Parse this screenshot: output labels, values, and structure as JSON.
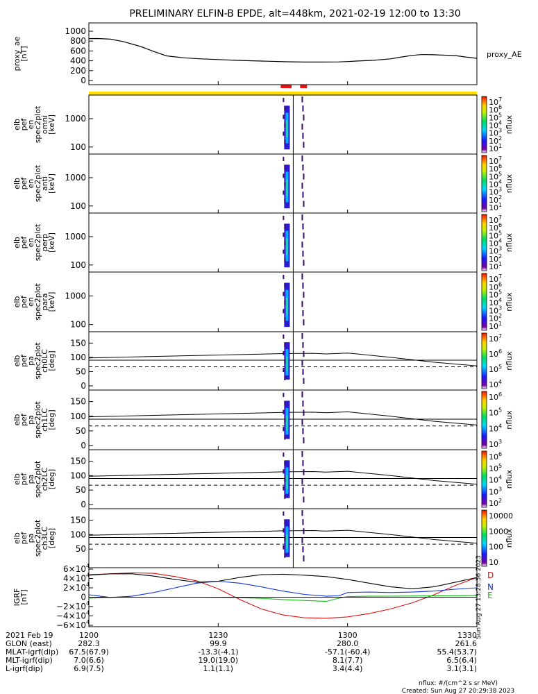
{
  "title": "PRELIMINARY ELFIN-B EPDE, alt=448km, 2021-02-19 12:00 to 13:30",
  "colors": {
    "yellow_bar": "#ffdd00",
    "red_marker": "#ee1111",
    "ae_line": "#000000",
    "d_line": "#dd1111",
    "n_line": "#1133dd",
    "e_line": "#11bb11"
  },
  "chart_data": [
    {
      "type": "line",
      "id": "proxy_ae",
      "ylabel_lines": [
        "proxy_ae",
        "[nT]"
      ],
      "yticks": [
        "1000",
        "800",
        "600",
        "400",
        "200",
        "0"
      ],
      "ylim": [
        -100,
        1100
      ],
      "series": [
        {
          "name": "proxy_AE",
          "x": [
            0,
            2,
            5,
            8,
            12,
            15,
            18,
            22,
            26,
            30,
            34,
            38,
            42,
            46,
            50,
            54,
            58,
            60,
            62,
            66,
            70,
            72,
            75,
            77,
            78,
            80,
            82,
            85,
            88,
            90
          ],
          "y": [
            850,
            852,
            840,
            790,
            690,
            590,
            500,
            460,
            440,
            425,
            410,
            400,
            390,
            380,
            375,
            375,
            378,
            385,
            395,
            410,
            440,
            470,
            510,
            525,
            525,
            522,
            515,
            505,
            470,
            450
          ]
        }
      ]
    },
    {
      "type": "heatmap",
      "id": "omni",
      "ylabel_lines": [
        "elb",
        "pef",
        "en",
        "spec2plot",
        "omni",
        "[keV]"
      ],
      "yticks": [
        "1000",
        "100"
      ],
      "yscale": "log",
      "cb_labels": [
        "10",
        "10",
        "10",
        "10",
        "10",
        "10",
        "10"
      ],
      "cb_exps": [
        "7",
        "6",
        "5",
        "4",
        "3",
        "2",
        "1"
      ],
      "cb_title": "nflux"
    },
    {
      "type": "heatmap",
      "id": "anti",
      "ylabel_lines": [
        "elb",
        "pef",
        "en",
        "spec2plot",
        "anti",
        "[keV]"
      ],
      "yticks": [
        "1000",
        "100"
      ],
      "yscale": "log",
      "cb_labels": [
        "10",
        "10",
        "10",
        "10",
        "10",
        "10",
        "10"
      ],
      "cb_exps": [
        "7",
        "6",
        "5",
        "4",
        "3",
        "2",
        "1"
      ],
      "cb_title": "nflux"
    },
    {
      "type": "heatmap",
      "id": "perp",
      "ylabel_lines": [
        "elb",
        "pef",
        "en",
        "spec2plot",
        "perp",
        "[keV]"
      ],
      "yticks": [
        "1000",
        "100"
      ],
      "yscale": "log",
      "cb_labels": [
        "10",
        "10",
        "10",
        "10",
        "10",
        "10",
        "10"
      ],
      "cb_exps": [
        "7",
        "6",
        "5",
        "4",
        "3",
        "2",
        "1"
      ],
      "cb_title": "nflux"
    },
    {
      "type": "heatmap",
      "id": "para",
      "ylabel_lines": [
        "elb",
        "pef",
        "en",
        "spec2plot",
        "para",
        "[keV]"
      ],
      "yticks": [
        "1000",
        "100"
      ],
      "yscale": "log",
      "cb_labels": [
        "10",
        "10",
        "10",
        "10",
        "10",
        "10",
        "10"
      ],
      "cb_exps": [
        "7",
        "6",
        "5",
        "4",
        "3",
        "2",
        "1"
      ],
      "cb_title": "nflux"
    },
    {
      "type": "heatmap",
      "id": "ch0LC",
      "ylabel_lines": [
        "elb",
        "pef",
        "pa",
        "spec2plot",
        "ch0LC",
        "[deg]"
      ],
      "yticks": [
        "150",
        "100",
        "50",
        "0"
      ],
      "ylim": [
        0,
        180
      ],
      "cb_labels": [
        "10",
        "10",
        "10",
        "10"
      ],
      "cb_exps": [
        "7",
        "6",
        "5",
        "4"
      ],
      "cb_title": "nflux",
      "solid_line": {
        "x": [
          0,
          30,
          45,
          52,
          55,
          60,
          70,
          80,
          90
        ],
        "y": [
          98,
          108,
          113,
          114,
          112,
          115,
          100,
          83,
          70
        ]
      },
      "dashed_line": {
        "x": [
          0,
          30,
          45,
          52,
          55,
          60,
          70,
          80,
          90
        ],
        "y": [
          67,
          67,
          67,
          67,
          67,
          67,
          67,
          67,
          67
        ]
      },
      "hline": 90
    },
    {
      "type": "heatmap",
      "id": "ch1LC",
      "ylabel_lines": [
        "elb",
        "pef",
        "pa",
        "spec2plot",
        "ch1LC",
        "[deg]"
      ],
      "yticks": [
        "150",
        "100",
        "50",
        "0"
      ],
      "ylim": [
        0,
        180
      ],
      "cb_labels": [
        "10",
        "10",
        "10",
        "10"
      ],
      "cb_exps": [
        "6",
        "5",
        "4",
        "3"
      ],
      "cb_title": "nflux",
      "solid_line": {
        "x": [
          0,
          30,
          45,
          52,
          55,
          60,
          70,
          80,
          90
        ],
        "y": [
          98,
          108,
          113,
          114,
          112,
          115,
          100,
          83,
          70
        ]
      },
      "dashed_line": {
        "x": [
          0,
          30,
          45,
          52,
          55,
          60,
          70,
          80,
          90
        ],
        "y": [
          67,
          67,
          67,
          67,
          67,
          67,
          67,
          67,
          67
        ]
      },
      "hline": 90
    },
    {
      "type": "heatmap",
      "id": "ch2LC",
      "ylabel_lines": [
        "elb",
        "pef",
        "pa",
        "spec2plot",
        "ch2LC",
        "[deg]"
      ],
      "yticks": [
        "150",
        "100",
        "50",
        "0"
      ],
      "ylim": [
        0,
        180
      ],
      "cb_labels": [
        "10",
        "10",
        "10",
        "10",
        "10"
      ],
      "cb_exps": [
        "6",
        "5",
        "4",
        "3",
        "2"
      ],
      "cb_title": "nflux",
      "solid_line": {
        "x": [
          0,
          30,
          45,
          52,
          55,
          60,
          70,
          80,
          90
        ],
        "y": [
          98,
          108,
          113,
          114,
          112,
          115,
          100,
          83,
          70
        ]
      },
      "dashed_line": {
        "x": [
          0,
          30,
          45,
          52,
          55,
          60,
          70,
          80,
          90
        ],
        "y": [
          67,
          67,
          67,
          67,
          67,
          67,
          67,
          67,
          67
        ]
      },
      "hline": 90
    },
    {
      "type": "heatmap",
      "id": "ch3LC",
      "ylabel_lines": [
        "elb",
        "pef",
        "pa",
        "spec2plot",
        "ch3LC",
        "[deg]"
      ],
      "yticks": [
        "150",
        "100",
        "50"
      ],
      "ylim": [
        0,
        180
      ],
      "cb_labels": [
        "10000",
        "1000",
        "100",
        "10"
      ],
      "cb_exps": [
        "",
        "",
        "",
        ""
      ],
      "cb_title": "nflux",
      "solid_line": {
        "x": [
          0,
          30,
          45,
          52,
          55,
          60,
          70,
          80,
          90
        ],
        "y": [
          98,
          108,
          113,
          114,
          112,
          115,
          100,
          83,
          70
        ]
      },
      "dashed_line": {
        "x": [
          0,
          30,
          45,
          52,
          55,
          60,
          70,
          80,
          90
        ],
        "y": [
          67,
          67,
          67,
          67,
          67,
          67,
          67,
          67,
          67
        ]
      },
      "hline": 90
    },
    {
      "type": "line",
      "id": "igrf",
      "ylabel_lines": [
        "IGRF",
        "[nT]"
      ],
      "yticks": [
        "6×10",
        "4×10",
        "2×10",
        "0",
        "−2×10",
        "−4×10",
        "−6×10"
      ],
      "ytick_exps": [
        "4",
        "4",
        "4",
        "",
        "4",
        "4",
        "4"
      ],
      "ylim": [
        -65000,
        65000
      ],
      "series": [
        {
          "name": "D",
          "x": [
            0,
            5,
            10,
            15,
            20,
            25,
            30,
            35,
            40,
            45,
            50,
            55,
            60,
            65,
            70,
            75,
            80,
            85,
            90
          ],
          "y": [
            48000,
            50000,
            52000,
            51000,
            44000,
            35000,
            18000,
            -5000,
            -25000,
            -38000,
            -44000,
            -45000,
            -42000,
            -35000,
            -25000,
            -12000,
            5000,
            25000,
            42000
          ]
        },
        {
          "name": "N",
          "x": [
            0,
            5,
            10,
            15,
            20,
            25,
            30,
            35,
            40,
            45,
            50,
            55,
            58,
            60,
            65,
            70,
            75,
            80,
            85,
            90
          ],
          "y": [
            5000,
            -500,
            2000,
            10000,
            20000,
            30000,
            34000,
            30000,
            22000,
            13000,
            6000,
            2000,
            3000,
            10000,
            11000,
            10000,
            11000,
            13000,
            17000,
            20000
          ]
        },
        {
          "name": "E",
          "x": [
            0,
            5,
            10,
            15,
            20,
            25,
            30,
            35,
            40,
            45,
            50,
            55,
            58,
            60,
            65,
            70,
            75,
            80,
            85,
            90
          ],
          "y": [
            -2000,
            -800,
            0,
            0,
            0,
            0,
            -500,
            -1000,
            -2500,
            -5000,
            -7000,
            -9000,
            -2000,
            1500,
            2000,
            2200,
            2500,
            2800,
            3200,
            3500
          ]
        },
        {
          "name": "",
          "x": [
            0,
            5,
            10,
            15,
            20,
            25,
            30,
            35,
            40,
            45,
            50,
            55,
            60,
            65,
            70,
            75,
            80,
            85,
            90
          ],
          "y": [
            47000,
            50000,
            50000,
            45000,
            38000,
            32000,
            34000,
            42000,
            48000,
            49000,
            47000,
            44000,
            38000,
            30000,
            22000,
            18000,
            22000,
            32000,
            42000
          ]
        }
      ],
      "labels": [
        "D",
        "N",
        "E"
      ]
    }
  ],
  "red_markers": [
    {
      "x0": 44.5,
      "x1": 47
    },
    {
      "x0": 49,
      "x1": 50.6
    }
  ],
  "footer": {
    "row_labels": [
      "2021 Feb 19",
      "GLON (east)",
      "MLAT-igrf(dip)",
      "MLT-igrf(dip)",
      "L-igrf(dip)"
    ],
    "columns": [
      {
        "time": "1200",
        "values": [
          "282.3",
          "67.5(67.9)",
          "7.0(6.6)",
          "6.9(7.5)"
        ]
      },
      {
        "time": "1230",
        "values": [
          "99.9",
          "-13.3(-4.1)",
          "19.0(19.0)",
          "1.1(1.1)"
        ]
      },
      {
        "time": "1300",
        "values": [
          "280.0",
          "-57.1(-60.4)",
          "8.1(7.7)",
          "3.4(4.4)"
        ]
      },
      {
        "time": "1330",
        "values": [
          "261.6",
          "55.4(53.7)",
          "6.5(6.4)",
          "3.1(3.1)"
        ]
      }
    ],
    "units": "nflux: #/(cm^2 s sr MeV)",
    "created": "Created: Sun Aug 27 20:29:38 2023",
    "side_stamp": "Sun Aug 27 13:28:56 2023"
  }
}
